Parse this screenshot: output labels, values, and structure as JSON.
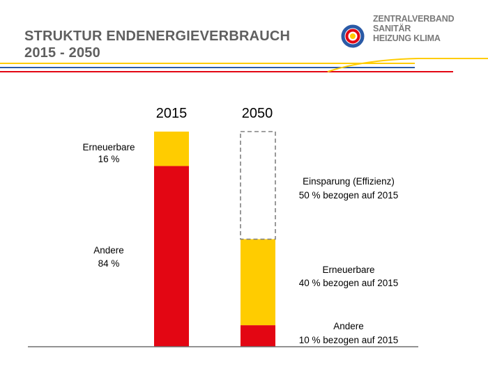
{
  "header": {
    "title_line1": "STRUKTUR ENDENERGIEVERBRAUCH",
    "title_line2": "2015 - 2050",
    "logo_line1": "ZENTRALVERBAND",
    "logo_line2": "SANITÄR",
    "logo_line3": "HEIZUNG KLIMA"
  },
  "colors": {
    "red": "#e30613",
    "yellow": "#ffcc00",
    "dashed_border": "#808080",
    "title_gray": "#5f5f5f",
    "stripe_blue": "#2a5aa6"
  },
  "chart_data": {
    "type": "bar",
    "stacked": true,
    "categories": [
      "2015",
      "2050"
    ],
    "unit": "%",
    "ylim": [
      0,
      100
    ],
    "series": [
      {
        "name": "Andere",
        "color": "#e30613",
        "values": [
          84,
          10
        ]
      },
      {
        "name": "Erneuerbare",
        "color": "#ffcc00",
        "values": [
          16,
          40
        ]
      },
      {
        "name": "Einsparung (Effizienz)",
        "color": "none",
        "style": "dashed-outline",
        "values": [
          0,
          50
        ]
      }
    ],
    "labels_2015": {
      "erneuerbare_line1": "Erneuerbare",
      "erneuerbare_line2": "16 %",
      "andere_line1": "Andere",
      "andere_line2": "84 %"
    },
    "labels_2050": {
      "einsparung_line1": "Einsparung (Effizienz)",
      "einsparung_line2": "50 % bezogen auf 2015",
      "erneuerbare_line1": "Erneuerbare",
      "erneuerbare_line2": "40 % bezogen auf 2015",
      "andere_line1": "Andere",
      "andere_line2": "10 % bezogen auf 2015"
    }
  }
}
